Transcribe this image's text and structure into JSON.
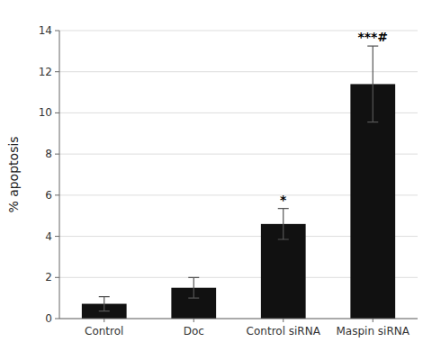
{
  "chart_data": {
    "type": "bar",
    "categories": [
      "Control",
      "Doc",
      "Control siRNA",
      "Maspin siRNA"
    ],
    "values": [
      0.72,
      1.5,
      4.6,
      11.4
    ],
    "errors": [
      0.35,
      0.5,
      0.75,
      1.85
    ],
    "significance": [
      null,
      null,
      "*",
      "***#"
    ],
    "color": "#111111",
    "ylabel": "% apoptosis",
    "ylim": [
      0,
      14
    ],
    "yticks": [
      0,
      2,
      4,
      6,
      8,
      10,
      12,
      14
    ],
    "grid": true
  }
}
